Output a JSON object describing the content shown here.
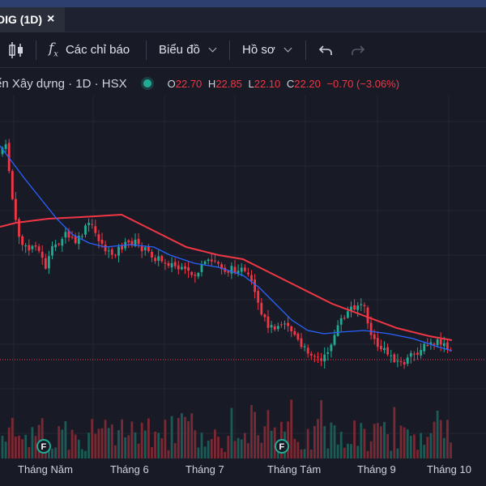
{
  "tab": {
    "title": "DIG (1D)",
    "close": "×"
  },
  "toolbar": {
    "indicators": "Các chỉ báo",
    "chart": "Biểu đồ",
    "profile": "Hồ sơ"
  },
  "legend": {
    "symbol": "ển Xây dựng · 1D · HSX",
    "o_label": "O",
    "o": "22.70",
    "h_label": "H",
    "h": "22.85",
    "l_label": "L",
    "l": "22.10",
    "c_label": "C",
    "c": "22.20",
    "change": "−0.70 (−3.06%)"
  },
  "colors": {
    "up": "#22ab94",
    "down": "#f23645",
    "ma_long": "#f23645",
    "ma_short": "#2962ff",
    "background": "#181b25"
  },
  "icons": [
    "candles-icon",
    "fx-icon",
    "undo-icon",
    "redo-icon",
    "close-icon"
  ],
  "chart_data": {
    "type": "candlestick",
    "timeframe": "1D",
    "x_labels": [
      "Tháng Năm",
      "Tháng 6",
      "Tháng 7",
      "Tháng Tám",
      "Tháng 9",
      "Tháng 10"
    ],
    "last_close": 22.2,
    "flag_markers": [
      "F",
      "F"
    ],
    "ma_long_points": [
      [
        0,
        280
      ],
      [
        20,
        275
      ],
      [
        60,
        270
      ],
      [
        100,
        268
      ],
      [
        150,
        265
      ],
      [
        190,
        285
      ],
      [
        230,
        305
      ],
      [
        270,
        315
      ],
      [
        300,
        320
      ],
      [
        330,
        335
      ],
      [
        370,
        355
      ],
      [
        410,
        375
      ],
      [
        450,
        390
      ],
      [
        490,
        405
      ],
      [
        530,
        415
      ],
      [
        558,
        420
      ]
    ],
    "ma_short_points": [
      [
        0,
        180
      ],
      [
        15,
        200
      ],
      [
        30,
        220
      ],
      [
        50,
        245
      ],
      [
        70,
        270
      ],
      [
        90,
        290
      ],
      [
        110,
        300
      ],
      [
        130,
        305
      ],
      [
        160,
        302
      ],
      [
        190,
        305
      ],
      [
        210,
        315
      ],
      [
        240,
        325
      ],
      [
        270,
        330
      ],
      [
        300,
        340
      ],
      [
        320,
        355
      ],
      [
        340,
        375
      ],
      [
        360,
        395
      ],
      [
        380,
        408
      ],
      [
        400,
        412
      ],
      [
        420,
        410
      ],
      [
        450,
        408
      ],
      [
        480,
        412
      ],
      [
        510,
        418
      ],
      [
        540,
        428
      ],
      [
        558,
        433
      ]
    ]
  }
}
